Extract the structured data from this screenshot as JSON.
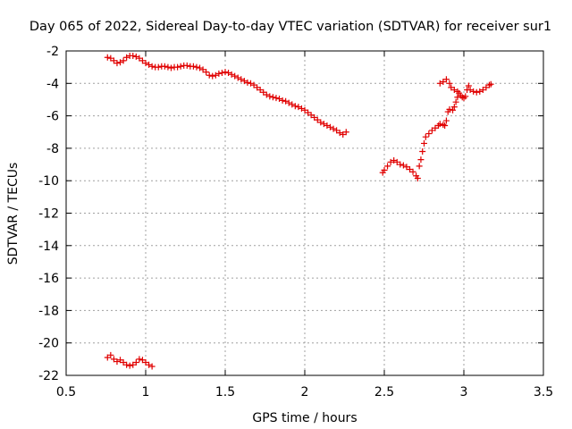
{
  "chart_data": {
    "type": "scatter",
    "title": "Day 065 of 2022, Sidereal Day-to-day VTEC variation (SDTVAR) for receiver sur1",
    "xlabel": "GPS time / hours",
    "ylabel": "SDTVAR / TECUs",
    "xlim": [
      0.5,
      3.5
    ],
    "ylim": [
      -22,
      -2
    ],
    "xticks": [
      0.5,
      1,
      1.5,
      2,
      2.5,
      3,
      3.5
    ],
    "xtick_labels": [
      "0.5",
      "1",
      "1.5",
      "2",
      "2.5",
      "3",
      "3.5"
    ],
    "yticks": [
      -22,
      -20,
      -18,
      -16,
      -14,
      -12,
      -10,
      -8,
      -6,
      -4,
      -2
    ],
    "ytick_labels": [
      "-22",
      "-20",
      "-18",
      "-16",
      "-14",
      "-12",
      "-10",
      "-8",
      "-6",
      "-4",
      "-2"
    ],
    "grid": true,
    "marker": "+",
    "marker_color": "#e00000",
    "series": [
      {
        "name": "main-track",
        "points": [
          [
            0.76,
            -2.4
          ],
          [
            0.78,
            -2.45
          ],
          [
            0.8,
            -2.6
          ],
          [
            0.82,
            -2.75
          ],
          [
            0.84,
            -2.7
          ],
          [
            0.86,
            -2.6
          ],
          [
            0.88,
            -2.4
          ],
          [
            0.9,
            -2.3
          ],
          [
            0.92,
            -2.3
          ],
          [
            0.94,
            -2.35
          ],
          [
            0.96,
            -2.45
          ],
          [
            0.98,
            -2.6
          ],
          [
            1.0,
            -2.75
          ],
          [
            1.02,
            -2.85
          ],
          [
            1.04,
            -2.95
          ],
          [
            1.06,
            -3.0
          ],
          [
            1.08,
            -3.0
          ],
          [
            1.1,
            -2.95
          ],
          [
            1.12,
            -2.95
          ],
          [
            1.14,
            -3.0
          ],
          [
            1.16,
            -3.05
          ],
          [
            1.18,
            -3.0
          ],
          [
            1.2,
            -3.0
          ],
          [
            1.22,
            -2.95
          ],
          [
            1.24,
            -2.9
          ],
          [
            1.26,
            -2.9
          ],
          [
            1.28,
            -2.95
          ],
          [
            1.3,
            -2.95
          ],
          [
            1.32,
            -3.0
          ],
          [
            1.34,
            -3.05
          ],
          [
            1.36,
            -3.15
          ],
          [
            1.38,
            -3.3
          ],
          [
            1.4,
            -3.5
          ],
          [
            1.42,
            -3.55
          ],
          [
            1.44,
            -3.5
          ],
          [
            1.46,
            -3.4
          ],
          [
            1.48,
            -3.35
          ],
          [
            1.5,
            -3.3
          ],
          [
            1.52,
            -3.35
          ],
          [
            1.54,
            -3.45
          ],
          [
            1.56,
            -3.55
          ],
          [
            1.58,
            -3.65
          ],
          [
            1.6,
            -3.75
          ],
          [
            1.62,
            -3.85
          ],
          [
            1.64,
            -3.95
          ],
          [
            1.66,
            -4.0
          ],
          [
            1.68,
            -4.1
          ],
          [
            1.7,
            -4.25
          ],
          [
            1.72,
            -4.4
          ],
          [
            1.74,
            -4.55
          ],
          [
            1.76,
            -4.7
          ],
          [
            1.78,
            -4.8
          ],
          [
            1.8,
            -4.85
          ],
          [
            1.82,
            -4.9
          ],
          [
            1.84,
            -4.95
          ],
          [
            1.86,
            -5.05
          ],
          [
            1.88,
            -5.1
          ],
          [
            1.9,
            -5.2
          ],
          [
            1.92,
            -5.3
          ],
          [
            1.94,
            -5.4
          ],
          [
            1.96,
            -5.45
          ],
          [
            1.98,
            -5.55
          ],
          [
            2.0,
            -5.65
          ],
          [
            2.02,
            -5.8
          ],
          [
            2.04,
            -5.95
          ],
          [
            2.06,
            -6.1
          ],
          [
            2.08,
            -6.25
          ],
          [
            2.1,
            -6.4
          ],
          [
            2.12,
            -6.5
          ],
          [
            2.14,
            -6.6
          ],
          [
            2.16,
            -6.7
          ],
          [
            2.18,
            -6.8
          ],
          [
            2.2,
            -6.9
          ],
          [
            2.22,
            -7.05
          ],
          [
            2.24,
            -7.15
          ],
          [
            2.26,
            -7.0
          ]
        ]
      },
      {
        "name": "lower-track",
        "points": [
          [
            0.76,
            -20.9
          ],
          [
            0.78,
            -20.75
          ],
          [
            0.8,
            -21.0
          ],
          [
            0.82,
            -21.15
          ],
          [
            0.84,
            -21.05
          ],
          [
            0.86,
            -21.2
          ],
          [
            0.88,
            -21.35
          ],
          [
            0.9,
            -21.4
          ],
          [
            0.92,
            -21.35
          ],
          [
            0.94,
            -21.2
          ],
          [
            0.96,
            -21.0
          ],
          [
            0.98,
            -21.05
          ],
          [
            1.0,
            -21.2
          ],
          [
            1.02,
            -21.35
          ],
          [
            1.04,
            -21.45
          ]
        ]
      },
      {
        "name": "right-track",
        "points": [
          [
            2.49,
            -9.5
          ],
          [
            2.5,
            -9.35
          ],
          [
            2.52,
            -9.1
          ],
          [
            2.54,
            -8.85
          ],
          [
            2.56,
            -8.75
          ],
          [
            2.58,
            -8.85
          ],
          [
            2.6,
            -9.0
          ],
          [
            2.62,
            -9.05
          ],
          [
            2.64,
            -9.15
          ],
          [
            2.66,
            -9.3
          ],
          [
            2.68,
            -9.45
          ],
          [
            2.7,
            -9.7
          ],
          [
            2.71,
            -9.85
          ],
          [
            2.72,
            -9.1
          ],
          [
            2.73,
            -8.7
          ],
          [
            2.74,
            -8.2
          ],
          [
            2.75,
            -7.7
          ],
          [
            2.76,
            -7.3
          ],
          [
            2.78,
            -7.1
          ],
          [
            2.8,
            -6.9
          ],
          [
            2.82,
            -6.75
          ],
          [
            2.84,
            -6.6
          ],
          [
            2.85,
            -6.5
          ],
          [
            2.87,
            -6.55
          ],
          [
            2.88,
            -6.6
          ],
          [
            2.89,
            -6.3
          ],
          [
            2.9,
            -5.75
          ],
          [
            2.91,
            -5.6
          ],
          [
            2.93,
            -5.65
          ],
          [
            2.94,
            -5.45
          ],
          [
            2.95,
            -5.15
          ],
          [
            2.96,
            -4.85
          ],
          [
            2.97,
            -4.6
          ],
          [
            2.98,
            -4.75
          ],
          [
            2.99,
            -4.85
          ],
          [
            3.0,
            -4.9
          ],
          [
            3.01,
            -4.8
          ],
          [
            3.02,
            -4.4
          ],
          [
            3.03,
            -4.15
          ],
          [
            3.04,
            -4.4
          ],
          [
            3.06,
            -4.5
          ],
          [
            3.08,
            -4.55
          ],
          [
            3.1,
            -4.5
          ],
          [
            3.12,
            -4.4
          ],
          [
            3.14,
            -4.25
          ],
          [
            3.16,
            -4.1
          ],
          [
            3.17,
            -4.05
          ],
          [
            2.85,
            -4.0
          ],
          [
            2.87,
            -3.9
          ],
          [
            2.89,
            -3.75
          ],
          [
            2.91,
            -4.0
          ],
          [
            2.92,
            -4.25
          ],
          [
            2.94,
            -4.4
          ],
          [
            2.96,
            -4.5
          ]
        ]
      }
    ]
  }
}
